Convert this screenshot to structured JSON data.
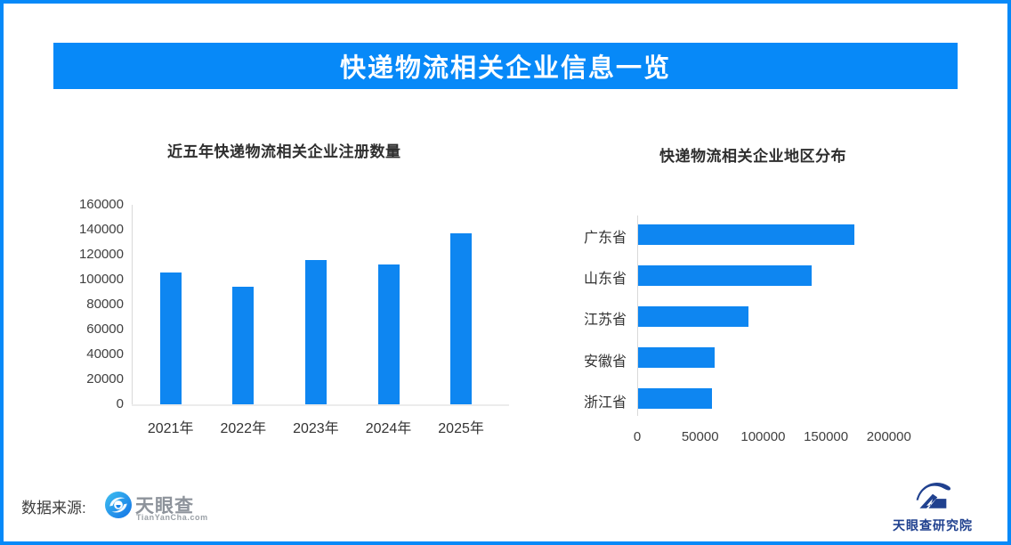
{
  "page": {
    "banner_title": "快递物流相关企业信息一览"
  },
  "colors": {
    "banner_blue": "#0789F8",
    "bar_blue": "#0E86F1",
    "navy": "#20418F",
    "axis_gray": "#D9D9D9",
    "baseline_gray": "#ECECEC"
  },
  "footer": {
    "source_label": "数据来源:",
    "tianyancha_name": "天眼查",
    "tianyancha_domain": "TianYanCha.com",
    "research_institute": "天眼查研究院"
  },
  "chart_data": [
    {
      "type": "bar",
      "orientation": "vertical",
      "title": "近五年快递物流相关企业注册数量",
      "categories": [
        "2021年",
        "2022年",
        "2023年",
        "2024年",
        "2025年"
      ],
      "values": [
        106000,
        94000,
        116000,
        112000,
        137500
      ],
      "xlabel": "",
      "ylabel": "",
      "ylim": [
        0,
        160000
      ],
      "yticks": [
        0,
        20000,
        40000,
        60000,
        80000,
        100000,
        120000,
        140000,
        160000
      ],
      "grid": false,
      "legend": false,
      "bar_color": "#0E86F1"
    },
    {
      "type": "bar",
      "orientation": "horizontal",
      "title": "快递物流相关企业地区分布",
      "categories": [
        "广东省",
        "山东省",
        "江苏省",
        "安徽省",
        "浙江省"
      ],
      "values": [
        172000,
        138000,
        88000,
        61000,
        59000
      ],
      "xlabel": "",
      "ylabel": "",
      "xlim": [
        0,
        240000
      ],
      "xticks": [
        0,
        50000,
        100000,
        150000,
        200000
      ],
      "grid": false,
      "legend": false,
      "bar_color": "#0E86F1"
    }
  ]
}
